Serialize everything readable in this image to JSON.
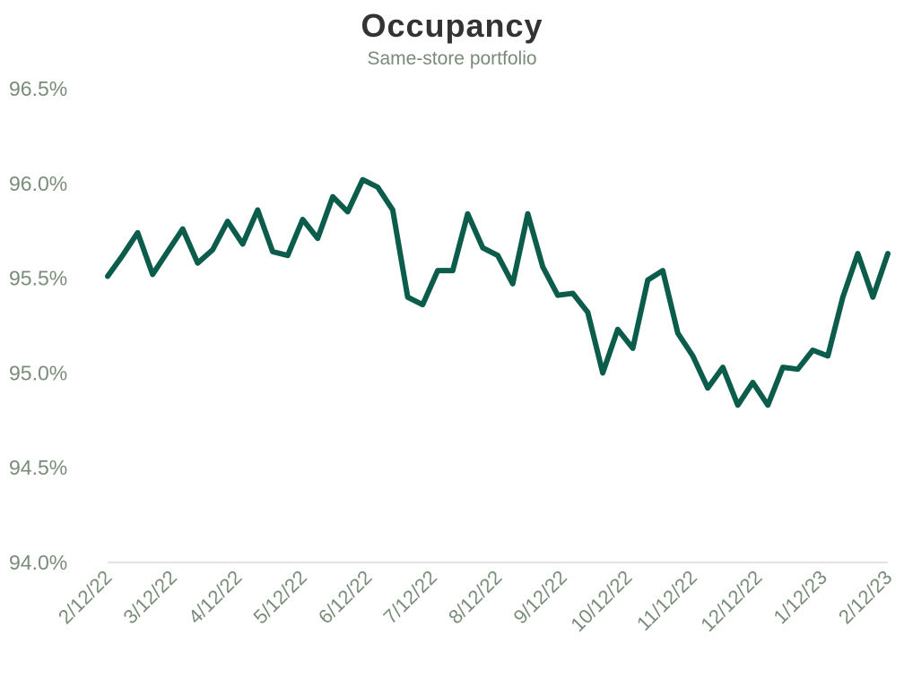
{
  "chart_data": {
    "type": "line",
    "title": "Occupancy",
    "subtitle": "Same-store portfolio",
    "xlabel": "",
    "ylabel": "",
    "ylim": [
      94.0,
      96.5
    ],
    "y_ticks": [
      "94.0%",
      "94.5%",
      "95.0%",
      "95.5%",
      "96.0%",
      "96.5%"
    ],
    "y_tick_values": [
      94.0,
      94.5,
      95.0,
      95.5,
      96.0,
      96.5
    ],
    "x_ticks": [
      "2/12/22",
      "3/12/22",
      "4/12/22",
      "5/12/22",
      "6/12/22",
      "7/12/22",
      "8/12/22",
      "9/12/22",
      "10/12/22",
      "11/12/22",
      "12/12/22",
      "1/12/23",
      "2/12/23"
    ],
    "grid": false,
    "line_color": "#0b5c4b",
    "series": [
      {
        "values": [
          95.51,
          95.62,
          95.74,
          95.52,
          95.64,
          95.76,
          95.58,
          95.65,
          95.8,
          95.68,
          95.86,
          95.64,
          95.62,
          95.81,
          95.71,
          95.93,
          95.85,
          96.02,
          95.98,
          95.86,
          95.4,
          95.36,
          95.54,
          95.54,
          95.84,
          95.66,
          95.62,
          95.47,
          95.84,
          95.56,
          95.41,
          95.42,
          95.32,
          95.0,
          95.23,
          95.13,
          95.49,
          95.54,
          95.21,
          95.09,
          94.92,
          95.03,
          94.83,
          94.95,
          94.83,
          95.03,
          95.02,
          95.12,
          95.09,
          95.4,
          95.63,
          95.4,
          95.63
        ]
      }
    ]
  }
}
